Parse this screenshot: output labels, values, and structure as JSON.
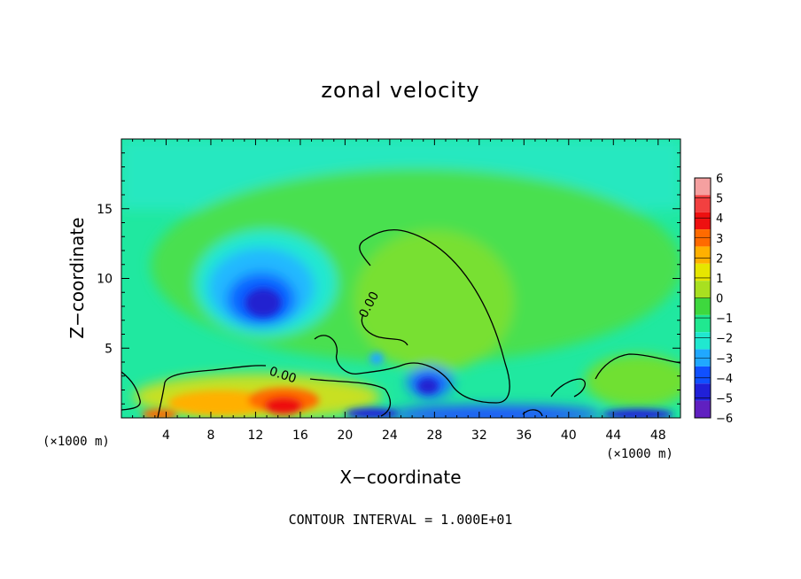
{
  "chart_data": {
    "type": "heatmap",
    "title": "zonal velocity",
    "xlabel": "X−coordinate",
    "ylabel": "Z−coordinate",
    "x_unit_left": "(×1000 m)",
    "x_unit_right": "(×1000 m)",
    "xlim": [
      0,
      50
    ],
    "ylim": [
      0,
      20
    ],
    "x_ticks": [
      4,
      8,
      12,
      16,
      20,
      24,
      28,
      32,
      36,
      40,
      44,
      48
    ],
    "x_tick_labels": [
      "4",
      "8",
      "12",
      "16",
      "20",
      "24",
      "28",
      "32",
      "36",
      "40",
      "44",
      "48"
    ],
    "y_ticks": [
      5,
      10,
      15
    ],
    "y_tick_labels": [
      "5",
      "10",
      "15"
    ],
    "colorbar": {
      "levels": [
        6,
        5,
        4,
        3,
        2,
        1,
        0,
        -1,
        -2,
        -3,
        -4,
        -5,
        -6
      ],
      "labels": [
        "6",
        "5",
        "4",
        "3",
        "2",
        "1",
        "0",
        "−1",
        "−2",
        "−3",
        "−4",
        "−5",
        "−6"
      ],
      "colors": [
        "#f5a0a0",
        "#f24040",
        "#ee1010",
        "#ff6a00",
        "#ffb000",
        "#e6e600",
        "#a8e020",
        "#3ed83e",
        "#20e890",
        "#20e8d0",
        "#20a8ff",
        "#1050ff",
        "#2020d8",
        "#6020c0"
      ]
    },
    "contour_labels": [
      "0.00",
      "0.00"
    ],
    "footer": "CONTOUR INTERVAL = 1.000E+01",
    "grid": false,
    "features": [
      {
        "name": "negative core",
        "x": 13.5,
        "z": 8.5,
        "value": -4.5
      },
      {
        "name": "negative lobe",
        "x": 27,
        "z": 2.2,
        "value": -4
      },
      {
        "name": "positive near-surface",
        "x": 14,
        "z": 1,
        "value": 4.5
      },
      {
        "name": "positive plume",
        "x": 28,
        "z": 8,
        "value": 1.2
      }
    ]
  }
}
